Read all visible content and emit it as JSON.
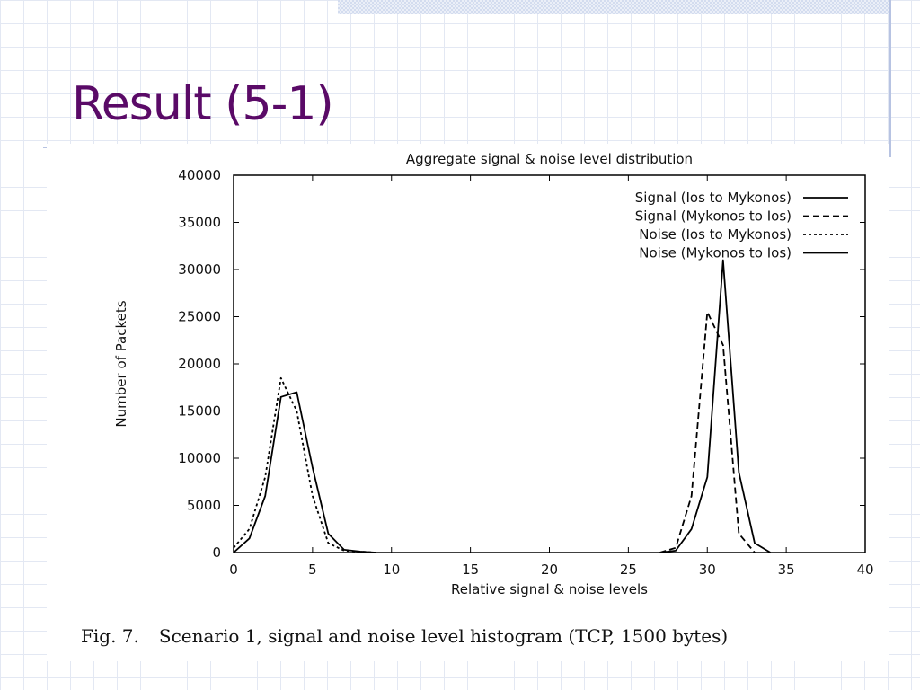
{
  "slide": {
    "title": "Result (5-1)"
  },
  "figure": {
    "caption_label": "Fig. 7.",
    "caption_text": "Scenario 1, signal and noise level histogram (TCP, 1500 bytes)"
  },
  "chart_data": {
    "type": "line",
    "title": "Aggregate signal & noise level distribution",
    "xlabel": "Relative signal & noise levels",
    "ylabel": "Number of Packets",
    "xlim": [
      0,
      40
    ],
    "ylim": [
      0,
      40000
    ],
    "xticks": [
      0,
      5,
      10,
      15,
      20,
      25,
      30,
      35,
      40
    ],
    "yticks": [
      0,
      5000,
      10000,
      15000,
      20000,
      25000,
      30000,
      35000,
      40000
    ],
    "grid": false,
    "legend_position": "top-right",
    "series": [
      {
        "name": "Signal (Ios to Mykonos)",
        "dash": "solid",
        "x": [
          27,
          28,
          29,
          30,
          31,
          32,
          33,
          34
        ],
        "y": [
          0,
          200,
          2500,
          8000,
          31000,
          8500,
          1000,
          0
        ]
      },
      {
        "name": "Signal (Mykonos to Ios)",
        "dash": "dashed",
        "x": [
          27,
          28,
          29,
          30,
          31,
          32,
          33
        ],
        "y": [
          0,
          500,
          6000,
          25500,
          22000,
          2000,
          0
        ]
      },
      {
        "name": "Noise (Ios to Mykonos)",
        "dash": "dotted",
        "x": [
          0,
          1,
          2,
          3,
          4,
          5,
          6,
          7,
          8,
          9
        ],
        "y": [
          500,
          2500,
          8000,
          18500,
          15000,
          6000,
          1000,
          200,
          100,
          0
        ]
      },
      {
        "name": "Noise (Mykonos to Ios)",
        "dash": "solid",
        "x": [
          0,
          1,
          2,
          3,
          4,
          5,
          6,
          7,
          8,
          9
        ],
        "y": [
          0,
          1500,
          6000,
          16500,
          17000,
          9000,
          2000,
          300,
          100,
          0
        ]
      }
    ]
  }
}
